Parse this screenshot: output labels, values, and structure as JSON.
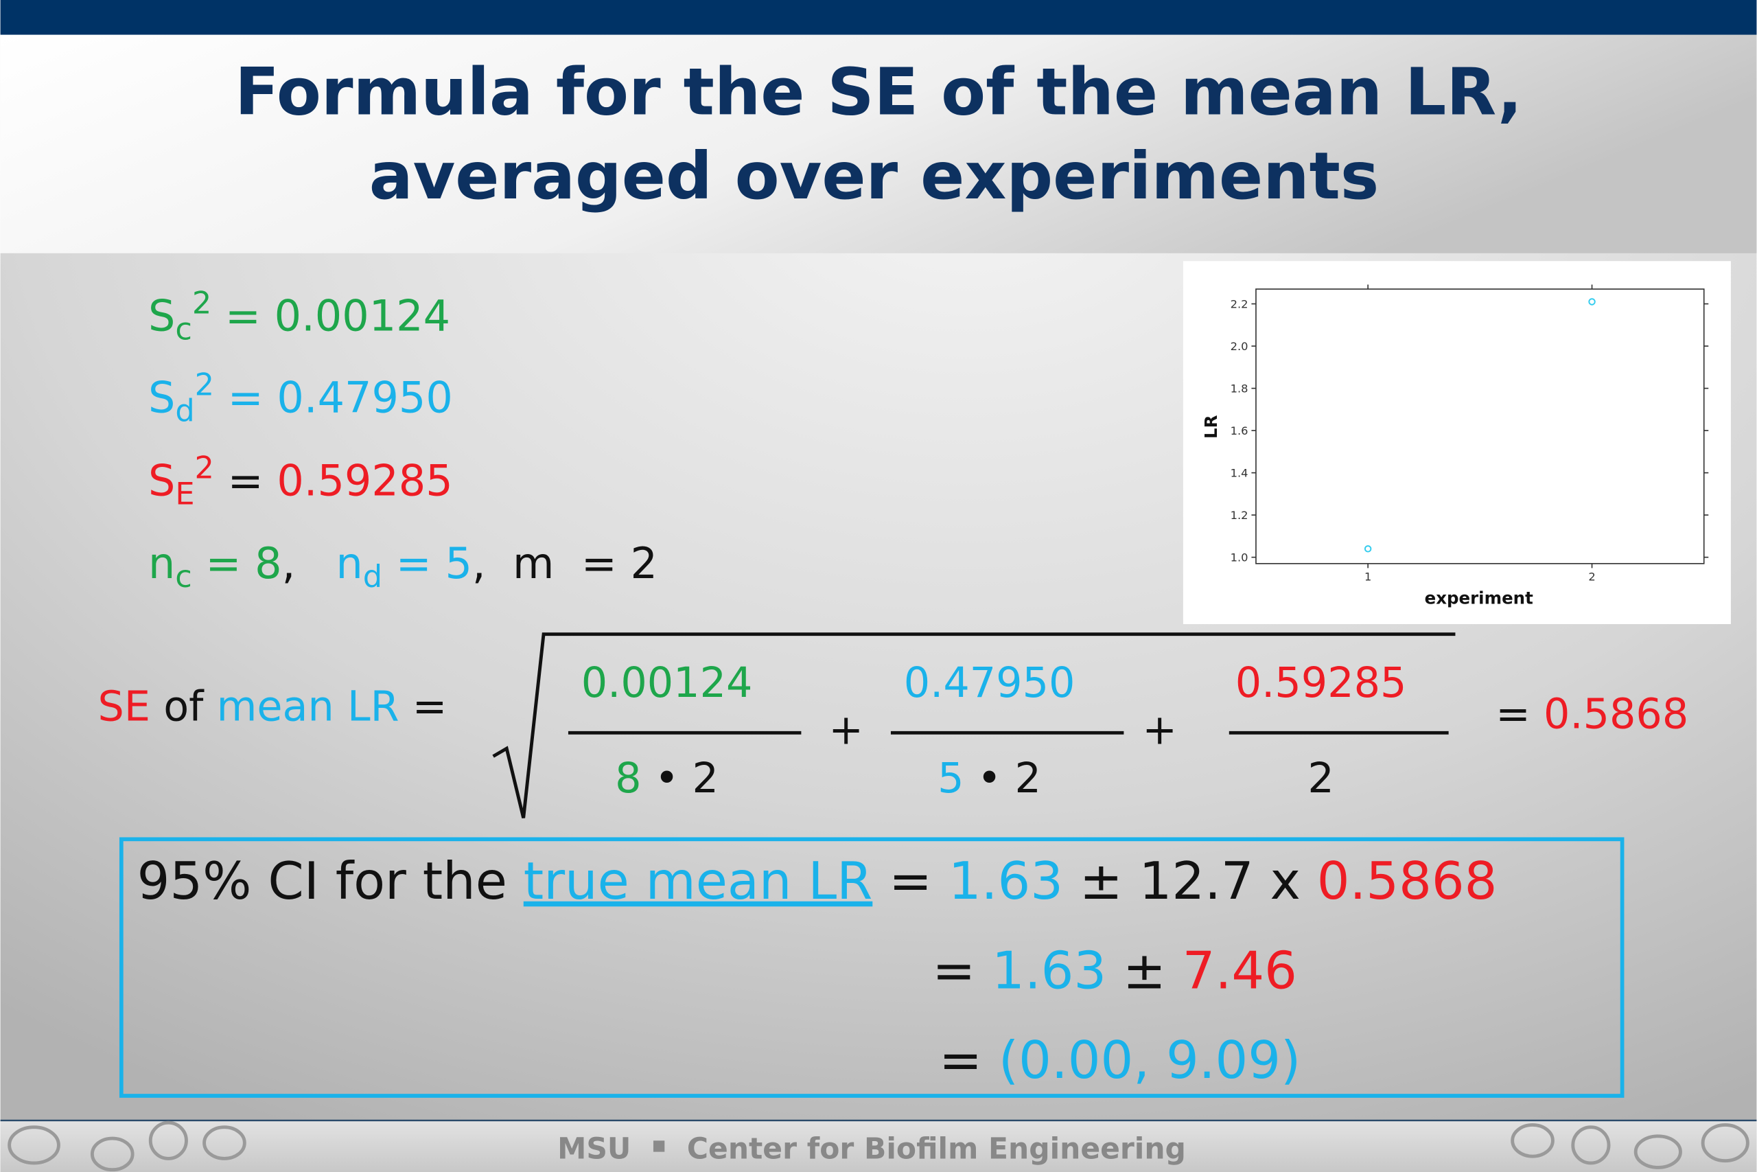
{
  "title": {
    "lines": [
      "Formula for the SE of the mean LR,",
      "averaged over experiments"
    ]
  },
  "given": [
    [
      {
        "text": "S",
        "pos": "base",
        "color": "#1ea64b"
      },
      {
        "text": "c",
        "pos": "sub",
        "color": "#1ea64b"
      },
      {
        "text": "2",
        "pos": "sup",
        "color": "#1ea64b"
      },
      {
        "text": " = 0.00124",
        "pos": "base",
        "color": "#1ea64b"
      }
    ],
    [
      {
        "text": "S",
        "pos": "base",
        "color": "#1ab2ea"
      },
      {
        "text": "d",
        "pos": "sub",
        "color": "#1ab2ea"
      },
      {
        "text": "2",
        "pos": "sup",
        "color": "#1ab2ea"
      },
      {
        "text": " = 0.47950",
        "pos": "base",
        "color": "#1ab2ea"
      }
    ],
    [
      {
        "text": "S",
        "pos": "base",
        "color": "#ee1c24"
      },
      {
        "text": "E",
        "pos": "sub",
        "color": "#ee1c24"
      },
      {
        "text": "2",
        "pos": "sup",
        "color": "#ee1c24"
      },
      {
        "text": " = ",
        "pos": "base",
        "color": "#111111"
      },
      {
        "text": "0.59285",
        "pos": "base",
        "color": "#ee1c24"
      }
    ],
    [
      {
        "text": "n",
        "pos": "base",
        "color": "#1ea64b"
      },
      {
        "text": "c",
        "pos": "sub",
        "color": "#1ea64b"
      },
      {
        "text": " = 8",
        "pos": "base",
        "color": "#1ea64b"
      },
      {
        "text": ",   ",
        "pos": "base",
        "color": "#111111"
      },
      {
        "text": "n",
        "pos": "base",
        "color": "#1ab2ea"
      },
      {
        "text": "d",
        "pos": "sub",
        "color": "#1ab2ea"
      },
      {
        "text": " = 5",
        "pos": "base",
        "color": "#1ab2ea"
      },
      {
        "text": ",  m  = 2",
        "pos": "base",
        "color": "#111111"
      }
    ]
  ],
  "formula": {
    "lhs": [
      {
        "text": "SE",
        "pos": "base",
        "color": "#ee1c24"
      },
      {
        "text": " of ",
        "pos": "base",
        "color": "#111111"
      },
      {
        "text": "mean LR",
        "pos": "base",
        "color": "#1ab2ea"
      },
      {
        "text": " =",
        "pos": "base",
        "color": "#111111"
      }
    ],
    "terms": [
      {
        "numerator": [
          {
            "text": "0.00124",
            "pos": "base",
            "color": "#1ea64b"
          }
        ],
        "denominator": [
          {
            "text": "8",
            "pos": "base",
            "color": "#1ea64b"
          },
          {
            "text": " • 2",
            "pos": "base",
            "color": "#111111"
          }
        ]
      },
      {
        "numerator": [
          {
            "text": "0.47950",
            "pos": "base",
            "color": "#1ab2ea"
          }
        ],
        "denominator": [
          {
            "text": "5",
            "pos": "base",
            "color": "#1ab2ea"
          },
          {
            "text": " • 2",
            "pos": "base",
            "color": "#111111"
          }
        ]
      },
      {
        "numerator": [
          {
            "text": "0.59285",
            "pos": "base",
            "color": "#ee1c24"
          }
        ],
        "denominator": [
          {
            "text": "2",
            "pos": "base",
            "color": "#111111"
          }
        ]
      }
    ],
    "operators": [
      "+",
      "+"
    ],
    "result": [
      {
        "text": "= ",
        "pos": "base",
        "color": "#111111"
      },
      {
        "text": "0.5868",
        "pos": "base",
        "color": "#ee1c24"
      }
    ]
  },
  "ci": [
    [
      {
        "text": "95% CI for the ",
        "pos": "base",
        "color": "#111111"
      },
      {
        "text": "true mean LR",
        "pos": "base",
        "color": "#1ab2ea",
        "underline": true
      },
      {
        "text": " = ",
        "pos": "base",
        "color": "#111111"
      },
      {
        "text": "1.63",
        "pos": "base",
        "color": "#1ab2ea"
      },
      {
        "text": " ± 12.7 x ",
        "pos": "base",
        "color": "#111111"
      },
      {
        "text": "0.5868",
        "pos": "base",
        "color": "#ee1c24"
      }
    ],
    [
      {
        "text": "= ",
        "pos": "base",
        "color": "#111111"
      },
      {
        "text": "1.63",
        "pos": "base",
        "color": "#1ab2ea"
      },
      {
        "text": " ± ",
        "pos": "base",
        "color": "#111111"
      },
      {
        "text": "7.46",
        "pos": "base",
        "color": "#ee1c24"
      }
    ],
    [
      {
        "text": "= ",
        "pos": "base",
        "color": "#111111"
      },
      {
        "text": "(0.00, 9.09)",
        "pos": "base",
        "color": "#1ab2ea"
      }
    ]
  ],
  "chart_data": {
    "type": "scatter",
    "xlabel": "experiment",
    "ylabel": "LR",
    "x": [
      1,
      2
    ],
    "values": [
      1.04,
      2.21
    ],
    "color": "#33ccee",
    "xlim": [
      0.5,
      2.5
    ],
    "ylim": [
      0.97,
      2.27
    ],
    "xticks": [
      1,
      2
    ],
    "yticks": [
      {
        "value": 1,
        "label": "1.0"
      },
      1.2,
      1.4,
      1.6,
      1.8,
      {
        "value": 2,
        "label": "2.0"
      },
      2.2
    ]
  },
  "footer": {
    "left": "MSU",
    "right": "Center for Biofilm Engineering"
  }
}
